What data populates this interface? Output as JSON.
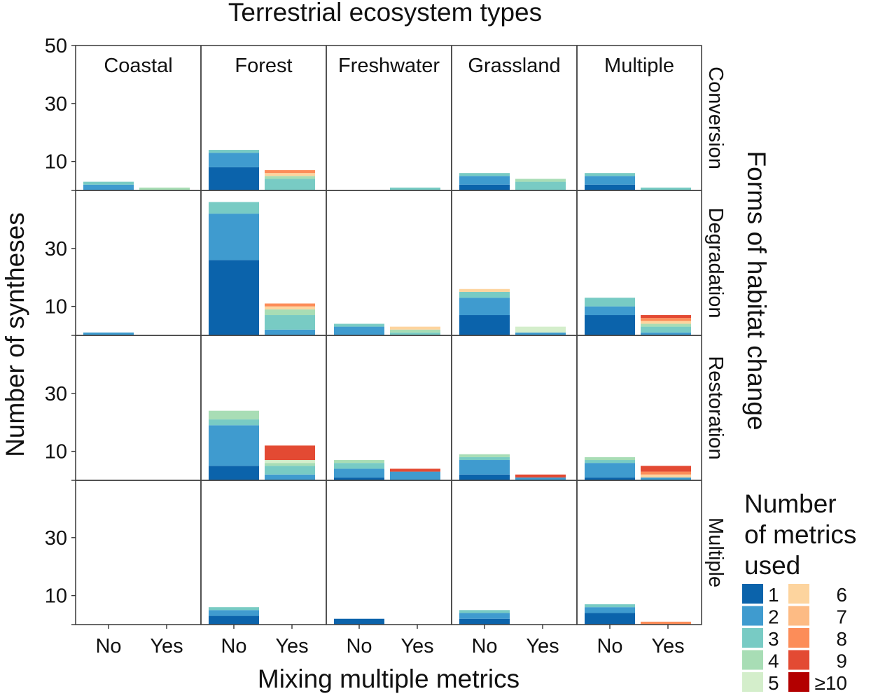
{
  "chart_data": {
    "type": "bar",
    "stacked": true,
    "title": "Terrestrial ecosystem types",
    "xlabel": "Mixing multiple metrics",
    "ylabel": "Number of syntheses",
    "row_strip_title": "Forms of habitat change",
    "ylim": [
      0,
      50
    ],
    "yticks": [
      10,
      30,
      50
    ],
    "columns": [
      "Coastal",
      "Forest",
      "Freshwater",
      "Grassland",
      "Multiple"
    ],
    "rows": [
      "Conversion",
      "Degradation",
      "Restoration",
      "Multiple"
    ],
    "categories": [
      "No",
      "Yes"
    ],
    "legend": {
      "title_lines": [
        "Number",
        "of metrics",
        "used"
      ],
      "position": "bottom-right",
      "entries": [
        {
          "key": "1",
          "label": "1",
          "color": "#0b63ab"
        },
        {
          "key": "2",
          "label": "2",
          "color": "#3f9bcf"
        },
        {
          "key": "3",
          "label": "3",
          "color": "#78cbc4"
        },
        {
          "key": "4",
          "label": "4",
          "color": "#a8ddb5"
        },
        {
          "key": "5",
          "label": "5",
          "color": "#d4eecb"
        },
        {
          "key": "6",
          "label": "6",
          "color": "#fdd49e"
        },
        {
          "key": "7",
          "label": "7",
          "color": "#fdbb84"
        },
        {
          "key": "8",
          "label": "8",
          "color": "#fc8d59"
        },
        {
          "key": "9",
          "label": "9",
          "color": "#e34a33"
        },
        {
          "key": "10",
          "label": "≥10",
          "color": "#b30000"
        }
      ]
    },
    "series_order": [
      "1",
      "2",
      "3",
      "4",
      "5",
      "6",
      "7",
      "8",
      "9",
      "10"
    ],
    "panels": [
      {
        "row": "Conversion",
        "col": "Coastal",
        "bars": {
          "No": {
            "2": 2,
            "3": 1
          },
          "Yes": {
            "4": 1
          }
        }
      },
      {
        "row": "Conversion",
        "col": "Forest",
        "bars": {
          "No": {
            "1": 8,
            "2": 5,
            "3": 1
          },
          "Yes": {
            "3": 4,
            "4": 1,
            "6": 1,
            "8": 1
          }
        }
      },
      {
        "row": "Conversion",
        "col": "Freshwater",
        "bars": {
          "No": {},
          "Yes": {
            "3": 1
          }
        }
      },
      {
        "row": "Conversion",
        "col": "Grassland",
        "bars": {
          "No": {
            "1": 2,
            "2": 3,
            "3": 1
          },
          "Yes": {
            "3": 3,
            "4": 1
          }
        }
      },
      {
        "row": "Conversion",
        "col": "Multiple",
        "bars": {
          "No": {
            "1": 2,
            "2": 3,
            "3": 1
          },
          "Yes": {
            "3": 1
          }
        }
      },
      {
        "row": "Degradation",
        "col": "Coastal",
        "bars": {
          "No": {
            "2": 1
          },
          "Yes": {}
        }
      },
      {
        "row": "Degradation",
        "col": "Forest",
        "bars": {
          "No": {
            "1": 26,
            "2": 16,
            "3": 4
          },
          "Yes": {
            "2": 2,
            "3": 5,
            "4": 2,
            "6": 1,
            "8": 1
          }
        }
      },
      {
        "row": "Degradation",
        "col": "Freshwater",
        "bars": {
          "No": {
            "2": 3,
            "3": 1
          },
          "Yes": {
            "3": 1,
            "4": 1,
            "6": 1
          }
        }
      },
      {
        "row": "Degradation",
        "col": "Grassland",
        "bars": {
          "No": {
            "1": 7,
            "2": 6,
            "3": 2,
            "6": 1
          },
          "Yes": {
            "2": 1,
            "5": 2
          }
        }
      },
      {
        "row": "Degradation",
        "col": "Multiple",
        "bars": {
          "No": {
            "1": 7,
            "2": 3,
            "3": 3
          },
          "Yes": {
            "2": 1,
            "3": 2,
            "4": 1,
            "6": 1,
            "8": 1,
            "9": 1
          }
        }
      },
      {
        "row": "Restoration",
        "col": "Coastal",
        "bars": {
          "No": {},
          "Yes": {}
        }
      },
      {
        "row": "Restoration",
        "col": "Forest",
        "bars": {
          "No": {
            "1": 5,
            "2": 14,
            "3": 2,
            "4": 3
          },
          "Yes": {
            "2": 2,
            "3": 3,
            "4": 1,
            "5": 1,
            "9": 5
          }
        }
      },
      {
        "row": "Restoration",
        "col": "Freshwater",
        "bars": {
          "No": {
            "1": 1,
            "2": 3,
            "3": 2,
            "4": 1
          },
          "Yes": {
            "2": 3,
            "9": 1
          }
        }
      },
      {
        "row": "Restoration",
        "col": "Grassland",
        "bars": {
          "No": {
            "1": 2,
            "2": 5,
            "3": 1,
            "4": 1
          },
          "Yes": {
            "2": 1,
            "9": 1
          }
        }
      },
      {
        "row": "Restoration",
        "col": "Multiple",
        "bars": {
          "No": {
            "1": 1,
            "2": 5,
            "3": 1,
            "4": 1
          },
          "Yes": {
            "2": 1,
            "6": 1,
            "8": 1,
            "9": 2
          }
        }
      },
      {
        "row": "Multiple",
        "col": "Coastal",
        "bars": {
          "No": {},
          "Yes": {}
        }
      },
      {
        "row": "Multiple",
        "col": "Forest",
        "bars": {
          "No": {
            "1": 3,
            "2": 2,
            "3": 1
          },
          "Yes": {}
        }
      },
      {
        "row": "Multiple",
        "col": "Freshwater",
        "bars": {
          "No": {
            "1": 2
          },
          "Yes": {}
        }
      },
      {
        "row": "Multiple",
        "col": "Grassland",
        "bars": {
          "No": {
            "1": 2,
            "2": 2,
            "3": 1
          },
          "Yes": {}
        }
      },
      {
        "row": "Multiple",
        "col": "Multiple",
        "bars": {
          "No": {
            "1": 4,
            "2": 2,
            "3": 1
          },
          "Yes": {
            "8": 1
          }
        }
      }
    ]
  }
}
